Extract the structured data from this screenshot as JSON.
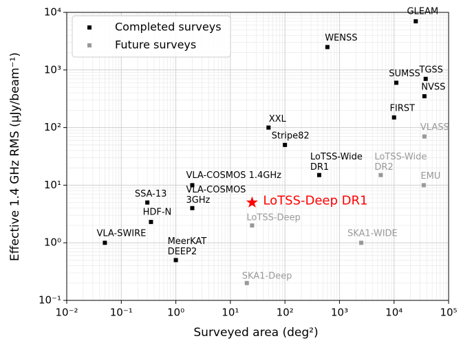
{
  "chart_data": {
    "type": "scatter",
    "xlabel": "Surveyed area (deg²)",
    "ylabel": "Effective 1.4 GHz RMS (μJy/beam⁻¹)",
    "xscale": "log",
    "yscale": "log",
    "xlim": [
      0.01,
      100000
    ],
    "ylim": [
      0.1,
      10000
    ],
    "xticks": [
      {
        "value": 0.01,
        "label": "10⁻²"
      },
      {
        "value": 0.1,
        "label": "10⁻¹"
      },
      {
        "value": 1,
        "label": "10⁰"
      },
      {
        "value": 10,
        "label": "10¹"
      },
      {
        "value": 100,
        "label": "10²"
      },
      {
        "value": 1000,
        "label": "10³"
      },
      {
        "value": 10000,
        "label": "10⁴"
      },
      {
        "value": 100000,
        "label": "10⁵"
      }
    ],
    "yticks": [
      {
        "value": 0.1,
        "label": "10⁻¹"
      },
      {
        "value": 1,
        "label": "10⁰"
      },
      {
        "value": 10,
        "label": "10¹"
      },
      {
        "value": 100,
        "label": "10²"
      },
      {
        "value": 1000,
        "label": "10³"
      },
      {
        "value": 10000,
        "label": "10⁴"
      }
    ],
    "grid": true,
    "minor_grid": true,
    "legend": "upper left",
    "series": [
      {
        "name": "Completed surveys",
        "color": "#000000",
        "x": [
          25000,
          600,
          11000,
          38000,
          36000,
          10000,
          50,
          100,
          424,
          2,
          2,
          0.3,
          0.35,
          0.05,
          1
        ],
        "values": [
          7000,
          2500,
          600,
          700,
          350,
          150,
          100,
          50,
          15,
          10,
          4,
          5,
          2.3,
          1,
          0.5
        ],
        "labels": [
          [
            "GLEAM"
          ],
          [
            "WENSS"
          ],
          [
            "SUMSS"
          ],
          [
            "TGSS"
          ],
          [
            "NVSS"
          ],
          [
            "FIRST"
          ],
          [
            "XXL"
          ],
          [
            "Stripe82"
          ],
          [
            "LoTSS-Wide",
            "DR1"
          ],
          [
            "VLA-COSMOS 1.4GHz"
          ],
          [
            "VLA-COSMOS",
            "3GHz"
          ],
          [
            "SSA-13"
          ],
          [
            "HDF-N"
          ],
          [
            "VLA-SWIRE"
          ],
          [
            "MeerKAT",
            "DEEP2"
          ]
        ]
      },
      {
        "name": "Future surveys",
        "color": "#999999",
        "x": [
          36000,
          5700,
          35000,
          25,
          2500,
          20
        ],
        "values": [
          70,
          15,
          10,
          2,
          1,
          0.2
        ],
        "labels": [
          [
            "VLASS"
          ],
          [
            "LoTSS-Wide",
            "DR2"
          ],
          [
            "EMU"
          ],
          [
            "LoTSS-Deep"
          ],
          [
            "SKA1-WIDE"
          ],
          [
            "SKA1-Deep"
          ]
        ]
      }
    ],
    "highlight": {
      "label": "LoTSS-Deep DR1",
      "x": 25,
      "y": 5,
      "color": "#ff0000"
    }
  }
}
